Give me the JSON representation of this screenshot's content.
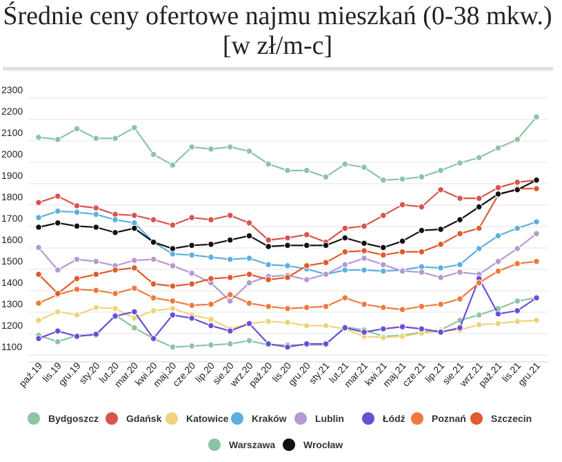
{
  "chart_data": {
    "type": "line",
    "title": "Średnie ceny ofertowe najmu mieszkań (0-38 mkw.) [w zł/m-c]",
    "xlabel": "",
    "ylabel": "",
    "ylim": [
      1050,
      2350
    ],
    "yticks": [
      1100,
      1200,
      1300,
      1400,
      1500,
      1600,
      1700,
      1800,
      1900,
      2000,
      2100,
      2200,
      2300
    ],
    "grid": true,
    "legend_position": "bottom",
    "categories": [
      "paź.19",
      "lis.19",
      "gru.19",
      "sty.20",
      "lut.20",
      "mar.20",
      "kwi.20",
      "maj.20",
      "cze.20",
      "lip.20",
      "sie.20",
      "wrz.20",
      "paź.20",
      "lis.20",
      "gru.20",
      "sty.21",
      "lut.21",
      "mar.21",
      "kwi.21",
      "maj.21",
      "cze.21",
      "lip.21",
      "sie.21",
      "wrz.21",
      "paź.21",
      "lis.21",
      "gru.21"
    ],
    "series": [
      {
        "name": "Bydgoszcz",
        "color": "#8cc4a4",
        "values": [
          1195,
          1165,
          1195,
          1195,
          1290,
          1230,
          1180,
          1140,
          1145,
          1150,
          1155,
          1170,
          1150,
          1150,
          1150,
          1150,
          1235,
          1220,
          1190,
          1195,
          1210,
          1220,
          1265,
          1290,
          1320,
          1355,
          1370
        ]
      },
      {
        "name": "Gdańsk",
        "color": "#d9534f",
        "values": [
          1815,
          1845,
          1800,
          1790,
          1760,
          1755,
          1735,
          1710,
          1745,
          1735,
          1755,
          1720,
          1640,
          1650,
          1665,
          1630,
          1695,
          1705,
          1755,
          1805,
          1795,
          1875,
          1835,
          1835,
          1885,
          1910,
          1920
        ]
      },
      {
        "name": "Katowice",
        "color": "#f0d27c",
        "values": [
          1265,
          1305,
          1290,
          1325,
          1320,
          1275,
          1310,
          1320,
          1290,
          1270,
          1225,
          1250,
          1260,
          1255,
          1240,
          1240,
          1225,
          1190,
          1185,
          1190,
          1205,
          1215,
          1220,
          1245,
          1250,
          1260,
          1265
        ]
      },
      {
        "name": "Kraków",
        "color": "#5bb0e0",
        "values": [
          1745,
          1775,
          1770,
          1760,
          1735,
          1720,
          1630,
          1575,
          1570,
          1560,
          1550,
          1555,
          1525,
          1520,
          1505,
          1480,
          1500,
          1500,
          1495,
          1500,
          1515,
          1510,
          1525,
          1600,
          1660,
          1695,
          1725
        ]
      },
      {
        "name": "Lublin",
        "color": "#b49ad0",
        "values": [
          1605,
          1500,
          1550,
          1540,
          1520,
          1545,
          1550,
          1520,
          1485,
          1440,
          1355,
          1440,
          1470,
          1475,
          1455,
          1480,
          1525,
          1555,
          1525,
          1495,
          1490,
          1465,
          1490,
          1480,
          1540,
          1600,
          1670
        ]
      },
      {
        "name": "Łódź",
        "color": "#6a4fd6",
        "values": [
          1180,
          1215,
          1190,
          1200,
          1285,
          1305,
          1180,
          1290,
          1275,
          1240,
          1215,
          1250,
          1155,
          1140,
          1155,
          1155,
          1230,
          1210,
          1225,
          1235,
          1225,
          1210,
          1230,
          1460,
          1295,
          1310,
          1370
        ]
      },
      {
        "name": "Poznań",
        "color": "#f07a3c",
        "values": [
          1345,
          1385,
          1410,
          1405,
          1390,
          1415,
          1370,
          1355,
          1335,
          1340,
          1385,
          1345,
          1330,
          1320,
          1325,
          1330,
          1370,
          1340,
          1325,
          1315,
          1330,
          1340,
          1365,
          1440,
          1495,
          1530,
          1540
        ]
      },
      {
        "name": "Szczecin",
        "color": "#e05a2b",
        "values": [
          1480,
          1390,
          1460,
          1480,
          1500,
          1510,
          1435,
          1425,
          1435,
          1460,
          1465,
          1480,
          1455,
          1465,
          1520,
          1535,
          1585,
          1590,
          1570,
          1585,
          1585,
          1620,
          1670,
          1695,
          1850,
          1880,
          1880
        ]
      },
      {
        "name": "Warszawa",
        "color": "#8cc4a4",
        "values": [
          2120,
          2110,
          2160,
          2115,
          2115,
          2165,
          2040,
          1990,
          2075,
          2065,
          2075,
          2055,
          1995,
          1965,
          1965,
          1935,
          1995,
          1980,
          1920,
          1925,
          1935,
          1965,
          2000,
          2025,
          2070,
          2110,
          2215
        ]
      },
      {
        "name": "Wrocław",
        "color": "#111111",
        "values": [
          1700,
          1720,
          1705,
          1700,
          1675,
          1695,
          1630,
          1600,
          1615,
          1620,
          1640,
          1660,
          1610,
          1615,
          1615,
          1615,
          1650,
          1625,
          1605,
          1635,
          1685,
          1690,
          1735,
          1795,
          1855,
          1875,
          1920
        ]
      }
    ]
  }
}
